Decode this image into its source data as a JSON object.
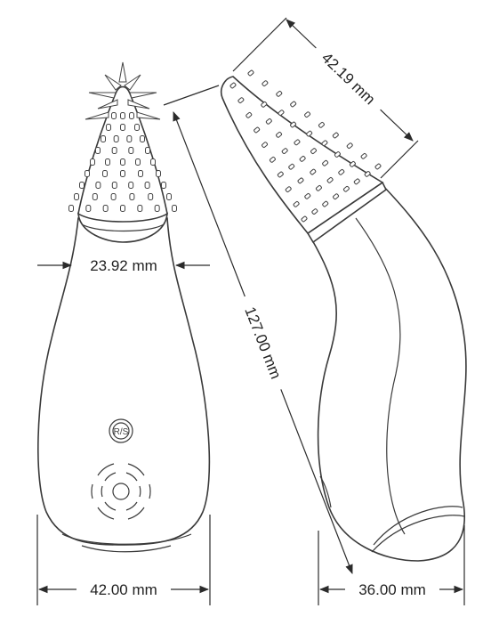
{
  "dimensions": {
    "neck_width": "23.92 mm",
    "front_width": "42.00 mm",
    "length": "127.00 mm",
    "head_width": "42.19 mm",
    "side_width": "36.00 mm"
  },
  "button_logo": "R/S",
  "icons": {
    "power_button": "vibration-button-icon",
    "mode_button": "rs-logo-icon"
  },
  "colors": {
    "outline": "#3a3a3a",
    "background": "#ffffff"
  }
}
